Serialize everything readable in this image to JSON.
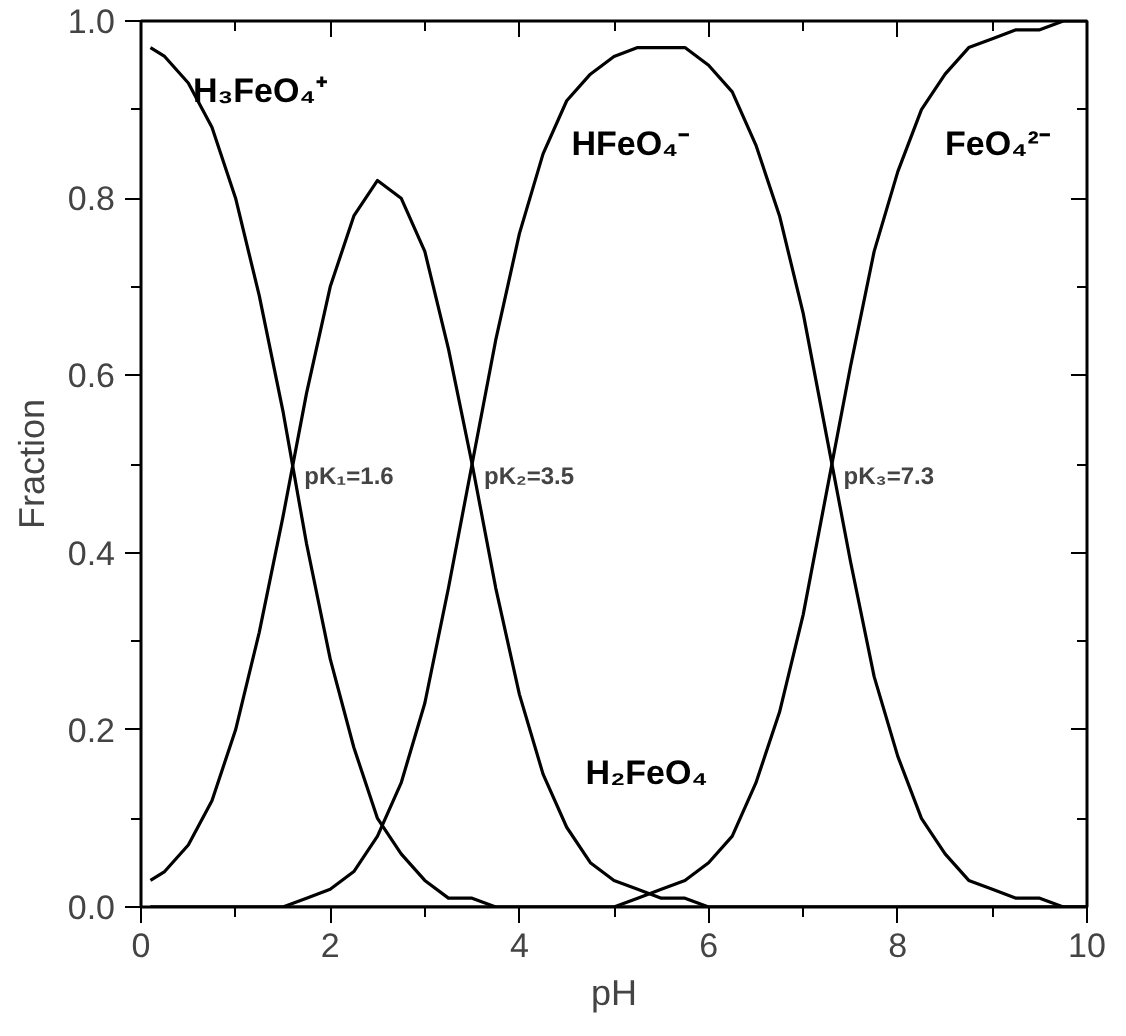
{
  "chart_data": {
    "type": "line",
    "xlabel": "pH",
    "ylabel": "Fraction",
    "x": [
      0.1,
      0.25,
      0.5,
      0.75,
      1,
      1.25,
      1.5,
      1.75,
      2,
      2.25,
      2.5,
      2.75,
      3,
      3.25,
      3.5,
      3.75,
      4,
      4.25,
      4.5,
      4.75,
      5,
      5.25,
      5.5,
      5.75,
      6,
      6.25,
      6.5,
      6.75,
      7,
      7.25,
      7.5,
      7.75,
      8,
      8.25,
      8.5,
      8.75,
      9,
      9.25,
      9.5,
      9.75,
      10
    ],
    "series": [
      {
        "name": "H₃FeO₄⁺",
        "color": "#000000",
        "values": [
          0.97,
          0.96,
          0.93,
          0.88,
          0.8,
          0.69,
          0.56,
          0.41,
          0.28,
          0.18,
          0.1,
          0.06,
          0.03,
          0.01,
          0.01,
          0,
          0,
          0,
          0,
          0,
          0,
          0,
          0,
          0,
          0,
          0,
          0,
          0,
          0,
          0,
          0,
          0,
          0,
          0,
          0,
          0,
          0,
          0,
          0,
          0,
          0
        ]
      },
      {
        "name": "H₂FeO₄",
        "color": "#000000",
        "values": [
          0.03,
          0.04,
          0.07,
          0.12,
          0.2,
          0.31,
          0.44,
          0.58,
          0.7,
          0.78,
          0.82,
          0.8,
          0.74,
          0.63,
          0.5,
          0.36,
          0.24,
          0.15,
          0.09,
          0.05,
          0.03,
          0.02,
          0.01,
          0.01,
          0,
          0,
          0,
          0,
          0,
          0,
          0,
          0,
          0,
          0,
          0,
          0,
          0,
          0,
          0,
          0,
          0
        ]
      },
      {
        "name": "HFeO₄⁻",
        "color": "#000000",
        "values": [
          0,
          0,
          0,
          0,
          0,
          0,
          0,
          0.01,
          0.02,
          0.04,
          0.08,
          0.14,
          0.23,
          0.36,
          0.5,
          0.64,
          0.76,
          0.85,
          0.91,
          0.94,
          0.96,
          0.97,
          0.97,
          0.97,
          0.95,
          0.92,
          0.86,
          0.78,
          0.67,
          0.53,
          0.39,
          0.26,
          0.17,
          0.1,
          0.06,
          0.03,
          0.02,
          0.01,
          0.01,
          0,
          0
        ]
      },
      {
        "name": "FeO₄²⁻",
        "color": "#000000",
        "values": [
          0,
          0,
          0,
          0,
          0,
          0,
          0,
          0,
          0,
          0,
          0,
          0,
          0,
          0,
          0,
          0,
          0,
          0,
          0,
          0,
          0,
          0.01,
          0.02,
          0.03,
          0.05,
          0.08,
          0.14,
          0.22,
          0.33,
          0.47,
          0.61,
          0.74,
          0.83,
          0.9,
          0.94,
          0.97,
          0.98,
          0.99,
          0.99,
          1.0,
          1.0
        ]
      }
    ],
    "annotations": [
      {
        "text": "pK₁=1.6",
        "x": 1.6,
        "y": 0.5
      },
      {
        "text": "pK₂=3.5",
        "x": 3.5,
        "y": 0.5
      },
      {
        "text": "pK₃=7.3",
        "x": 7.3,
        "y": 0.5
      }
    ],
    "xlim": [
      0,
      10
    ],
    "ylim": [
      0,
      1
    ],
    "xticks": [
      0,
      2,
      4,
      6,
      8,
      10
    ],
    "yticks": [
      {
        "value": 0,
        "label": "0.0"
      },
      {
        "value": 0.2,
        "label": "0.2"
      },
      {
        "value": 0.4,
        "label": "0.4"
      },
      {
        "value": 0.6,
        "label": "0.6"
      },
      {
        "value": 0.8,
        "label": "0.8"
      },
      {
        "value": 1,
        "label": "1.0"
      }
    ],
    "grid": false,
    "legend": "top",
    "marker": "none",
    "line_style": "solid"
  }
}
